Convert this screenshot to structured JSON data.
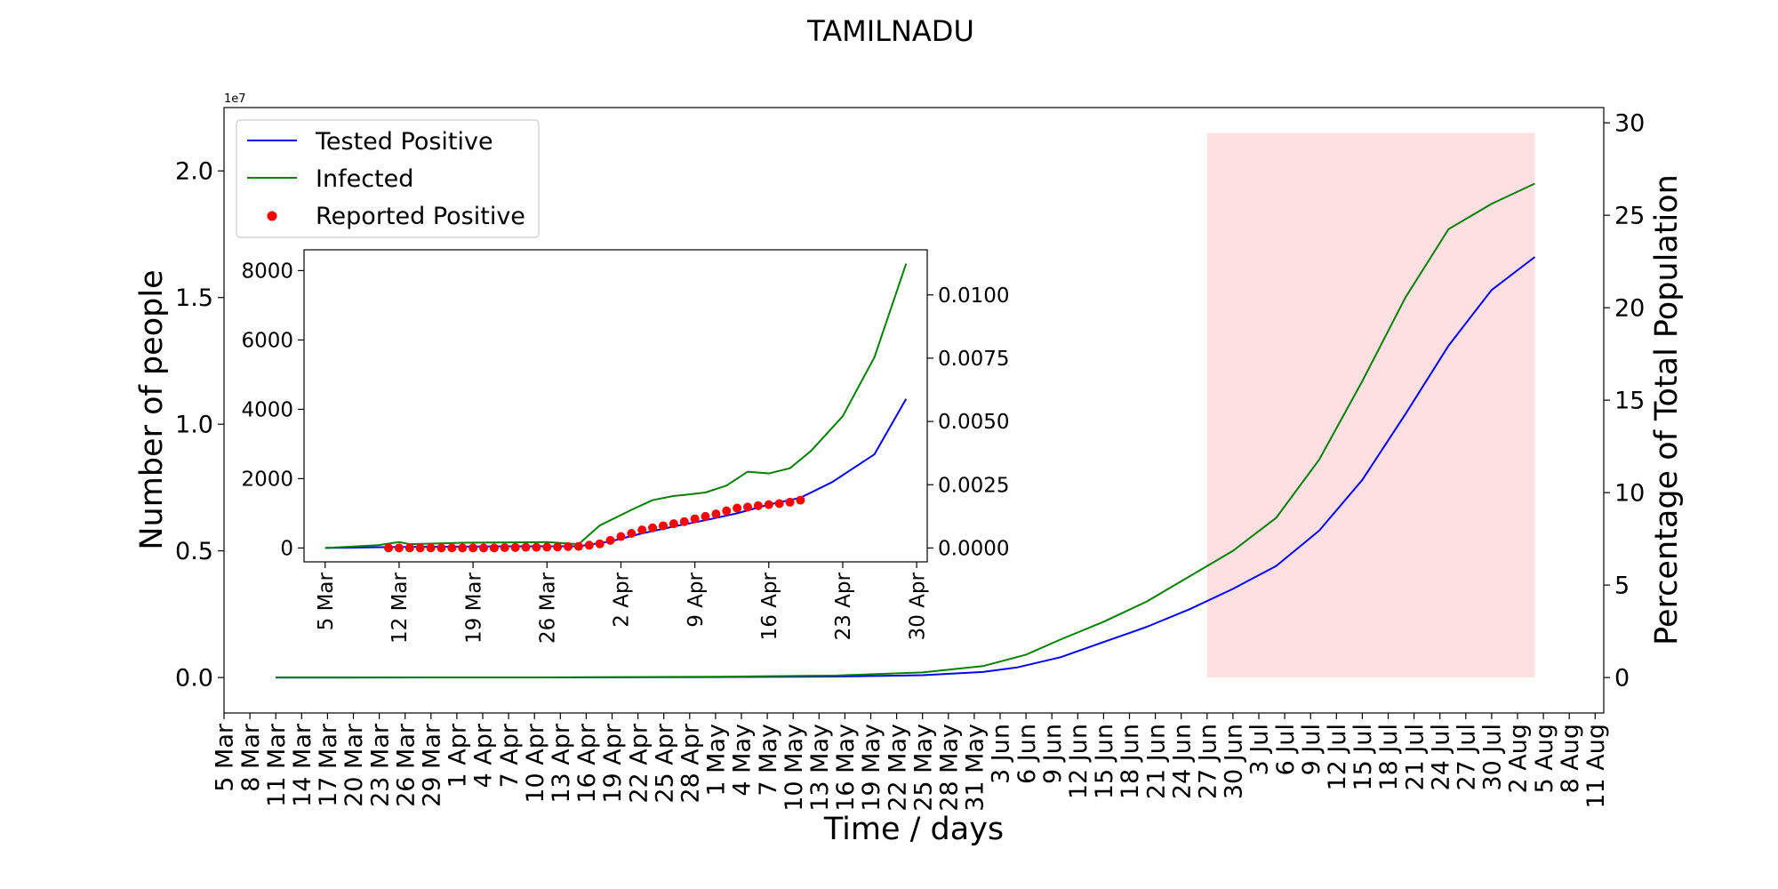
{
  "title": "TAMILNADU",
  "colors": {
    "tested": "#0000ff",
    "infected": "#008000",
    "reported": "#ff0000",
    "shade": "#ffe0e2"
  },
  "chart_data": [
    {
      "type": "line",
      "role": "main",
      "xlabel": "Time / days",
      "ylabel": "Number of people",
      "ylabel_right": "Percentage of Total Population",
      "y_offset_text": "1e7",
      "x_tick_labels": [
        "5 Mar",
        "8 Mar",
        "11 Mar",
        "14 Mar",
        "17 Mar",
        "20 Mar",
        "23 Mar",
        "26 Mar",
        "29 Mar",
        "1 Apr",
        "4 Apr",
        "7 Apr",
        "10 Apr",
        "13 Apr",
        "16 Apr",
        "19 Apr",
        "22 Apr",
        "25 Apr",
        "28 Apr",
        "1 May",
        "4 May",
        "7 May",
        "10 May",
        "13 May",
        "16 May",
        "19 May",
        "22 May",
        "25 May",
        "28 May",
        "31 May",
        "3 Jun",
        "6 Jun",
        "9 Jun",
        "12 Jun",
        "15 Jun",
        "18 Jun",
        "21 Jun",
        "24 Jun",
        "27 Jun",
        "30 Jun",
        "3 Jul",
        "6 Jul",
        "9 Jul",
        "12 Jul",
        "15 Jul",
        "18 Jul",
        "21 Jul",
        "24 Jul",
        "27 Jul",
        "30 Jul",
        "2 Aug",
        "5 Aug",
        "8 Aug",
        "11 Aug"
      ],
      "xlim": [
        "2020-03-05",
        "2020-08-12"
      ],
      "ylim": [
        -0.14,
        2.25
      ],
      "y_ticks": [
        0.0,
        0.5,
        1.0,
        1.5,
        2.0
      ],
      "y_tick_labels": [
        "0.0",
        "0.5",
        "1.0",
        "1.5",
        "2.0"
      ],
      "y2_ticks": [
        0,
        5,
        10,
        15,
        20,
        25,
        30
      ],
      "y2_tick_labels": [
        "0",
        "5",
        "10",
        "15",
        "20",
        "25",
        "30"
      ],
      "y2_per_unit": 13.7,
      "shaded_region": {
        "x": [
          "2020-06-27",
          "2020-08-04"
        ],
        "y": [
          0,
          2.15
        ]
      },
      "legend": {
        "position": "top-left"
      },
      "series": [
        {
          "name": "Tested Positive",
          "color_key": "tested",
          "points": [
            [
              "2020-03-11",
              0
            ],
            [
              "2020-04-10",
              0.0003
            ],
            [
              "2020-05-01",
              0.0015
            ],
            [
              "2020-05-15",
              0.004
            ],
            [
              "2020-05-25",
              0.009
            ],
            [
              "2020-06-01",
              0.022
            ],
            [
              "2020-06-05",
              0.04
            ],
            [
              "2020-06-10",
              0.08
            ],
            [
              "2020-06-15",
              0.14
            ],
            [
              "2020-06-20",
              0.2
            ],
            [
              "2020-06-25",
              0.27
            ],
            [
              "2020-06-30",
              0.35
            ],
            [
              "2020-07-05",
              0.44
            ],
            [
              "2020-07-10",
              0.58
            ],
            [
              "2020-07-15",
              0.78
            ],
            [
              "2020-07-20",
              1.04
            ],
            [
              "2020-07-25",
              1.31
            ],
            [
              "2020-07-30",
              1.53
            ],
            [
              "2020-08-04",
              1.66
            ]
          ]
        },
        {
          "name": "Infected",
          "color_key": "infected",
          "points": [
            [
              "2020-03-11",
              0
            ],
            [
              "2020-04-10",
              0.0005
            ],
            [
              "2020-05-01",
              0.003
            ],
            [
              "2020-05-15",
              0.008
            ],
            [
              "2020-05-25",
              0.02
            ],
            [
              "2020-06-01",
              0.045
            ],
            [
              "2020-06-06",
              0.09
            ],
            [
              "2020-06-10",
              0.15
            ],
            [
              "2020-06-15",
              0.22
            ],
            [
              "2020-06-20",
              0.3
            ],
            [
              "2020-06-25",
              0.4
            ],
            [
              "2020-06-30",
              0.5
            ],
            [
              "2020-07-05",
              0.63
            ],
            [
              "2020-07-10",
              0.86
            ],
            [
              "2020-07-15",
              1.17
            ],
            [
              "2020-07-20",
              1.5
            ],
            [
              "2020-07-25",
              1.77
            ],
            [
              "2020-07-30",
              1.87
            ],
            [
              "2020-08-04",
              1.95
            ]
          ]
        }
      ]
    },
    {
      "type": "line",
      "role": "inset",
      "x_tick_labels": [
        "5 Mar",
        "12 Mar",
        "19 Mar",
        "26 Mar",
        "2 Apr",
        "9 Apr",
        "16 Apr",
        "23 Apr",
        "30 Apr"
      ],
      "xlim": [
        "2020-03-03",
        "2020-05-01"
      ],
      "ylim": [
        -400,
        8600
      ],
      "y_ticks": [
        0,
        2000,
        4000,
        6000,
        8000
      ],
      "y_tick_labels": [
        "0",
        "2000",
        "4000",
        "6000",
        "8000"
      ],
      "y2_ticks": [
        0.0,
        0.0025,
        0.005,
        0.0075,
        0.01
      ],
      "y2_tick_labels": [
        "0.0000",
        "0.0025",
        "0.0050",
        "0.0075",
        "0.0100"
      ],
      "y2_per_unit": 1.37e-06,
      "series": [
        {
          "name": "Tested Positive",
          "color_key": "tested",
          "points": [
            [
              "2020-03-05",
              0
            ],
            [
              "2020-03-11",
              25
            ],
            [
              "2020-03-17",
              40
            ],
            [
              "2020-03-23",
              50
            ],
            [
              "2020-03-29",
              50
            ],
            [
              "2020-04-01",
              190
            ],
            [
              "2020-04-04",
              420
            ],
            [
              "2020-04-07",
              620
            ],
            [
              "2020-04-10",
              800
            ],
            [
              "2020-04-13",
              1000
            ],
            [
              "2020-04-16",
              1250
            ],
            [
              "2020-04-19",
              1450
            ],
            [
              "2020-04-22",
              1900
            ],
            [
              "2020-04-26",
              2700
            ],
            [
              "2020-04-29",
              4300
            ]
          ]
        },
        {
          "name": "Infected",
          "color_key": "infected",
          "points": [
            [
              "2020-03-05",
              0
            ],
            [
              "2020-03-10",
              80
            ],
            [
              "2020-03-12",
              170
            ],
            [
              "2020-03-13",
              110
            ],
            [
              "2020-03-18",
              150
            ],
            [
              "2020-03-23",
              160
            ],
            [
              "2020-03-26",
              170
            ],
            [
              "2020-03-29",
              110
            ],
            [
              "2020-03-31",
              650
            ],
            [
              "2020-04-03",
              1100
            ],
            [
              "2020-04-05",
              1380
            ],
            [
              "2020-04-07",
              1500
            ],
            [
              "2020-04-08",
              1530
            ],
            [
              "2020-04-10",
              1600
            ],
            [
              "2020-04-12",
              1800
            ],
            [
              "2020-04-14",
              2200
            ],
            [
              "2020-04-16",
              2150
            ],
            [
              "2020-04-18",
              2300
            ],
            [
              "2020-04-20",
              2800
            ],
            [
              "2020-04-23",
              3800
            ],
            [
              "2020-04-26",
              5500
            ],
            [
              "2020-04-29",
              8200
            ]
          ]
        }
      ],
      "reported_positive": {
        "name": "Reported Positive",
        "color_key": "reported",
        "points": [
          [
            "2020-03-11",
            0
          ],
          [
            "2020-03-12",
            0
          ],
          [
            "2020-03-13",
            0
          ],
          [
            "2020-03-14",
            0
          ],
          [
            "2020-03-15",
            0
          ],
          [
            "2020-03-16",
            0
          ],
          [
            "2020-03-17",
            0
          ],
          [
            "2020-03-18",
            0
          ],
          [
            "2020-03-19",
            0
          ],
          [
            "2020-03-20",
            0
          ],
          [
            "2020-03-21",
            0
          ],
          [
            "2020-03-22",
            10
          ],
          [
            "2020-03-23",
            15
          ],
          [
            "2020-03-24",
            20
          ],
          [
            "2020-03-25",
            20
          ],
          [
            "2020-03-26",
            25
          ],
          [
            "2020-03-27",
            30
          ],
          [
            "2020-03-28",
            40
          ],
          [
            "2020-03-29",
            45
          ],
          [
            "2020-03-30",
            80
          ],
          [
            "2020-03-31",
            120
          ],
          [
            "2020-04-01",
            220
          ],
          [
            "2020-04-02",
            330
          ],
          [
            "2020-04-03",
            420
          ],
          [
            "2020-04-04",
            520
          ],
          [
            "2020-04-05",
            580
          ],
          [
            "2020-04-06",
            640
          ],
          [
            "2020-04-07",
            700
          ],
          [
            "2020-04-08",
            760
          ],
          [
            "2020-04-09",
            840
          ],
          [
            "2020-04-10",
            910
          ],
          [
            "2020-04-11",
            980
          ],
          [
            "2020-04-12",
            1070
          ],
          [
            "2020-04-13",
            1150
          ],
          [
            "2020-04-14",
            1180
          ],
          [
            "2020-04-15",
            1220
          ],
          [
            "2020-04-16",
            1250
          ],
          [
            "2020-04-17",
            1280
          ],
          [
            "2020-04-18",
            1320
          ],
          [
            "2020-04-19",
            1380
          ]
        ]
      }
    }
  ]
}
